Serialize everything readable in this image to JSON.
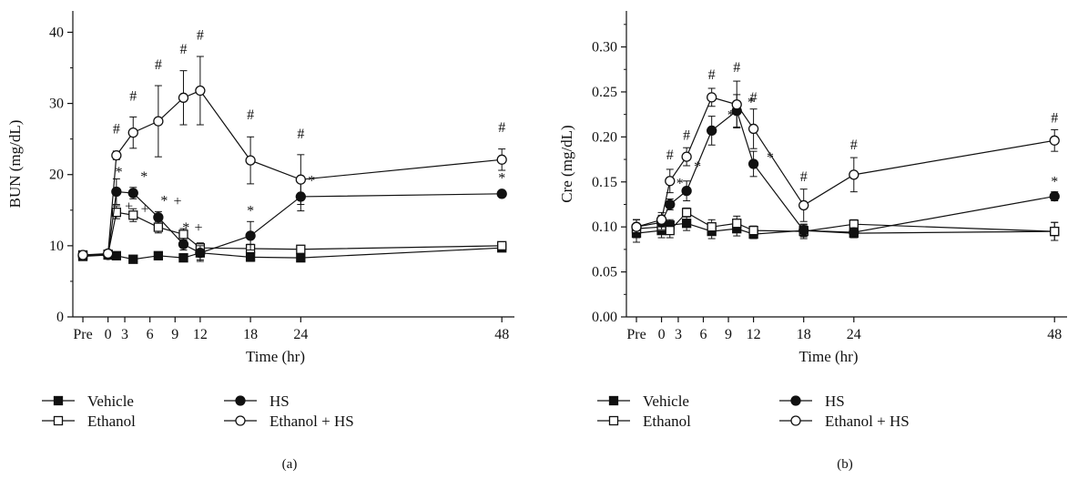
{
  "chart_data": [
    {
      "type": "line",
      "panel_label": "(a)",
      "xlabel": "Time (hr)",
      "ylabel": "BUN (mg/dL)",
      "ylim": [
        0,
        43
      ],
      "yticks": [
        0,
        10,
        20,
        30,
        40
      ],
      "x_tick_labels": [
        "Pre",
        "0",
        "3",
        "6",
        "9",
        "12",
        "18",
        "24",
        "48"
      ],
      "x_tick_positions": [
        -2,
        1,
        3,
        6,
        9,
        12,
        18,
        24,
        48
      ],
      "grid": false,
      "legend": "bottom",
      "series": [
        {
          "name": "Vehicle",
          "marker": "filled-square",
          "x": [
            -2,
            1,
            2,
            4,
            7,
            10,
            12,
            18,
            24,
            48
          ],
          "y": [
            8.5,
            8.7,
            8.6,
            8.1,
            8.6,
            8.3,
            9.0,
            8.4,
            8.3,
            9.7
          ],
          "err": [
            0.3,
            0.3,
            0.3,
            0.3,
            0.3,
            0.3,
            1.2,
            0.6,
            0.4,
            0.5
          ]
        },
        {
          "name": "Ethanol",
          "marker": "open-square",
          "x": [
            -2,
            1,
            2,
            4,
            7,
            10,
            12,
            18,
            24,
            48
          ],
          "y": [
            8.7,
            8.8,
            14.7,
            14.3,
            12.6,
            11.6,
            9.7,
            9.6,
            9.5,
            10.0
          ],
          "err": [
            0.3,
            0.3,
            0.9,
            0.9,
            0.8,
            0.8,
            0.7,
            0.6,
            0.4,
            0.5
          ]
        },
        {
          "name": "HS",
          "marker": "filled-circle",
          "x": [
            -2,
            1,
            2,
            4,
            7,
            10,
            12,
            18,
            24,
            48
          ],
          "y": [
            8.6,
            8.7,
            17.6,
            17.4,
            14.0,
            10.2,
            9.0,
            11.4,
            16.9,
            17.3
          ],
          "err": [
            0.3,
            0.3,
            1.8,
            0.8,
            0.8,
            0.8,
            1.0,
            2.0,
            2.0,
            0.4
          ]
        },
        {
          "name": "Ethanol + HS",
          "marker": "open-circle",
          "x": [
            -2,
            1,
            2,
            4,
            7,
            10,
            12,
            18,
            24,
            48
          ],
          "y": [
            8.7,
            8.9,
            22.7,
            25.9,
            27.5,
            30.8,
            31.8,
            22.0,
            19.3,
            22.1
          ],
          "err": [
            0.3,
            0.3,
            0.6,
            2.2,
            5.0,
            3.8,
            4.8,
            3.3,
            3.5,
            1.5
          ]
        }
      ],
      "annotations": [
        {
          "text": "#",
          "x": 2,
          "y": 25.8
        },
        {
          "text": "#",
          "x": 4,
          "y": 30.4
        },
        {
          "text": "#",
          "x": 7,
          "y": 34.8
        },
        {
          "text": "#",
          "x": 10,
          "y": 37.0
        },
        {
          "text": "#",
          "x": 12,
          "y": 39.0
        },
        {
          "text": "#",
          "x": 18,
          "y": 27.8
        },
        {
          "text": "#",
          "x": 24,
          "y": 25.1
        },
        {
          "text": "#",
          "x": 48,
          "y": 26.0
        },
        {
          "text": "*",
          "x": 2.3,
          "y": 19.7
        },
        {
          "text": "*",
          "x": 5.3,
          "y": 19.1
        },
        {
          "text": "*",
          "x": 7.7,
          "y": 15.7
        },
        {
          "text": "+",
          "x": 9.3,
          "y": 15.6
        },
        {
          "text": "*",
          "x": 10.3,
          "y": 11.9
        },
        {
          "text": "+",
          "x": 11.8,
          "y": 11.9
        },
        {
          "text": "+",
          "x": 3.5,
          "y": 14.9
        },
        {
          "text": "+",
          "x": 5.4,
          "y": 14.5
        },
        {
          "text": "*",
          "x": 18,
          "y": 14.3
        },
        {
          "text": "*",
          "x": 25.3,
          "y": 18.5
        },
        {
          "text": "*",
          "x": 48,
          "y": 18.9
        }
      ]
    },
    {
      "type": "line",
      "panel_label": "(b)",
      "xlabel": "Time (hr)",
      "ylabel": "Cre (mg/dL)",
      "ylim": [
        0,
        0.34
      ],
      "yticks": [
        0.0,
        0.05,
        0.1,
        0.15,
        0.2,
        0.25,
        0.3
      ],
      "ytick_labels": [
        "0.00",
        "0.05",
        "0.10",
        "0.15",
        "0.20",
        "0.25",
        "0.30"
      ],
      "x_tick_labels": [
        "Pre",
        "0",
        "3",
        "6",
        "9",
        "12",
        "18",
        "24",
        "48"
      ],
      "x_tick_positions": [
        -2,
        1,
        3,
        6,
        9,
        12,
        18,
        24,
        48
      ],
      "grid": false,
      "legend": "bottom",
      "series": [
        {
          "name": "Vehicle",
          "marker": "filled-square",
          "x": [
            -2,
            1,
            2,
            4,
            7,
            10,
            12,
            18,
            24,
            48
          ],
          "y": [
            0.093,
            0.096,
            0.102,
            0.104,
            0.095,
            0.098,
            0.092,
            0.096,
            0.093,
            0.095
          ],
          "err": [
            0.01,
            0.008,
            0.006,
            0.008,
            0.008,
            0.008,
            0.005,
            0.006,
            0.005,
            0.01
          ]
        },
        {
          "name": "Ethanol",
          "marker": "open-square",
          "x": [
            -2,
            1,
            2,
            4,
            7,
            10,
            12,
            18,
            24,
            48
          ],
          "y": [
            0.098,
            0.1,
            0.096,
            0.116,
            0.1,
            0.104,
            0.096,
            0.095,
            0.103,
            0.095
          ],
          "err": [
            0.01,
            0.008,
            0.008,
            0.005,
            0.008,
            0.008,
            0.005,
            0.008,
            0.005,
            0.01
          ]
        },
        {
          "name": "HS",
          "marker": "filled-circle",
          "x": [
            -2,
            1,
            2,
            4,
            7,
            10,
            12,
            18,
            24,
            48
          ],
          "y": [
            0.1,
            0.105,
            0.125,
            0.14,
            0.207,
            0.229,
            0.17,
            0.096,
            0.094,
            0.134
          ],
          "err": [
            0.008,
            0.008,
            0.006,
            0.011,
            0.016,
            0.018,
            0.014,
            0.007,
            0.005,
            0.005
          ]
        },
        {
          "name": "Ethanol + HS",
          "marker": "open-circle",
          "x": [
            -2,
            1,
            2,
            4,
            7,
            10,
            12,
            18,
            24,
            48
          ],
          "y": [
            0.1,
            0.108,
            0.151,
            0.178,
            0.244,
            0.236,
            0.209,
            0.124,
            0.158,
            0.196
          ],
          "err": [
            0.008,
            0.008,
            0.013,
            0.01,
            0.01,
            0.026,
            0.022,
            0.018,
            0.019,
            0.012
          ]
        }
      ],
      "annotations": [
        {
          "text": "#",
          "x": 2,
          "y": 0.175
        },
        {
          "text": "#",
          "x": 4,
          "y": 0.197
        },
        {
          "text": "#",
          "x": 7,
          "y": 0.264
        },
        {
          "text": "#",
          "x": 10,
          "y": 0.272
        },
        {
          "text": "#",
          "x": 12,
          "y": 0.239
        },
        {
          "text": "#",
          "x": 18,
          "y": 0.151
        },
        {
          "text": "#",
          "x": 24,
          "y": 0.186
        },
        {
          "text": "#",
          "x": 48,
          "y": 0.216
        },
        {
          "text": "*",
          "x": 3.2,
          "y": 0.143
        },
        {
          "text": "*",
          "x": 5.3,
          "y": 0.162
        },
        {
          "text": "*",
          "x": 9.3,
          "y": 0.219
        },
        {
          "text": "*",
          "x": 11.7,
          "y": 0.233
        },
        {
          "text": "*",
          "x": 14,
          "y": 0.172
        },
        {
          "text": "*",
          "x": 48,
          "y": 0.145
        }
      ]
    }
  ]
}
